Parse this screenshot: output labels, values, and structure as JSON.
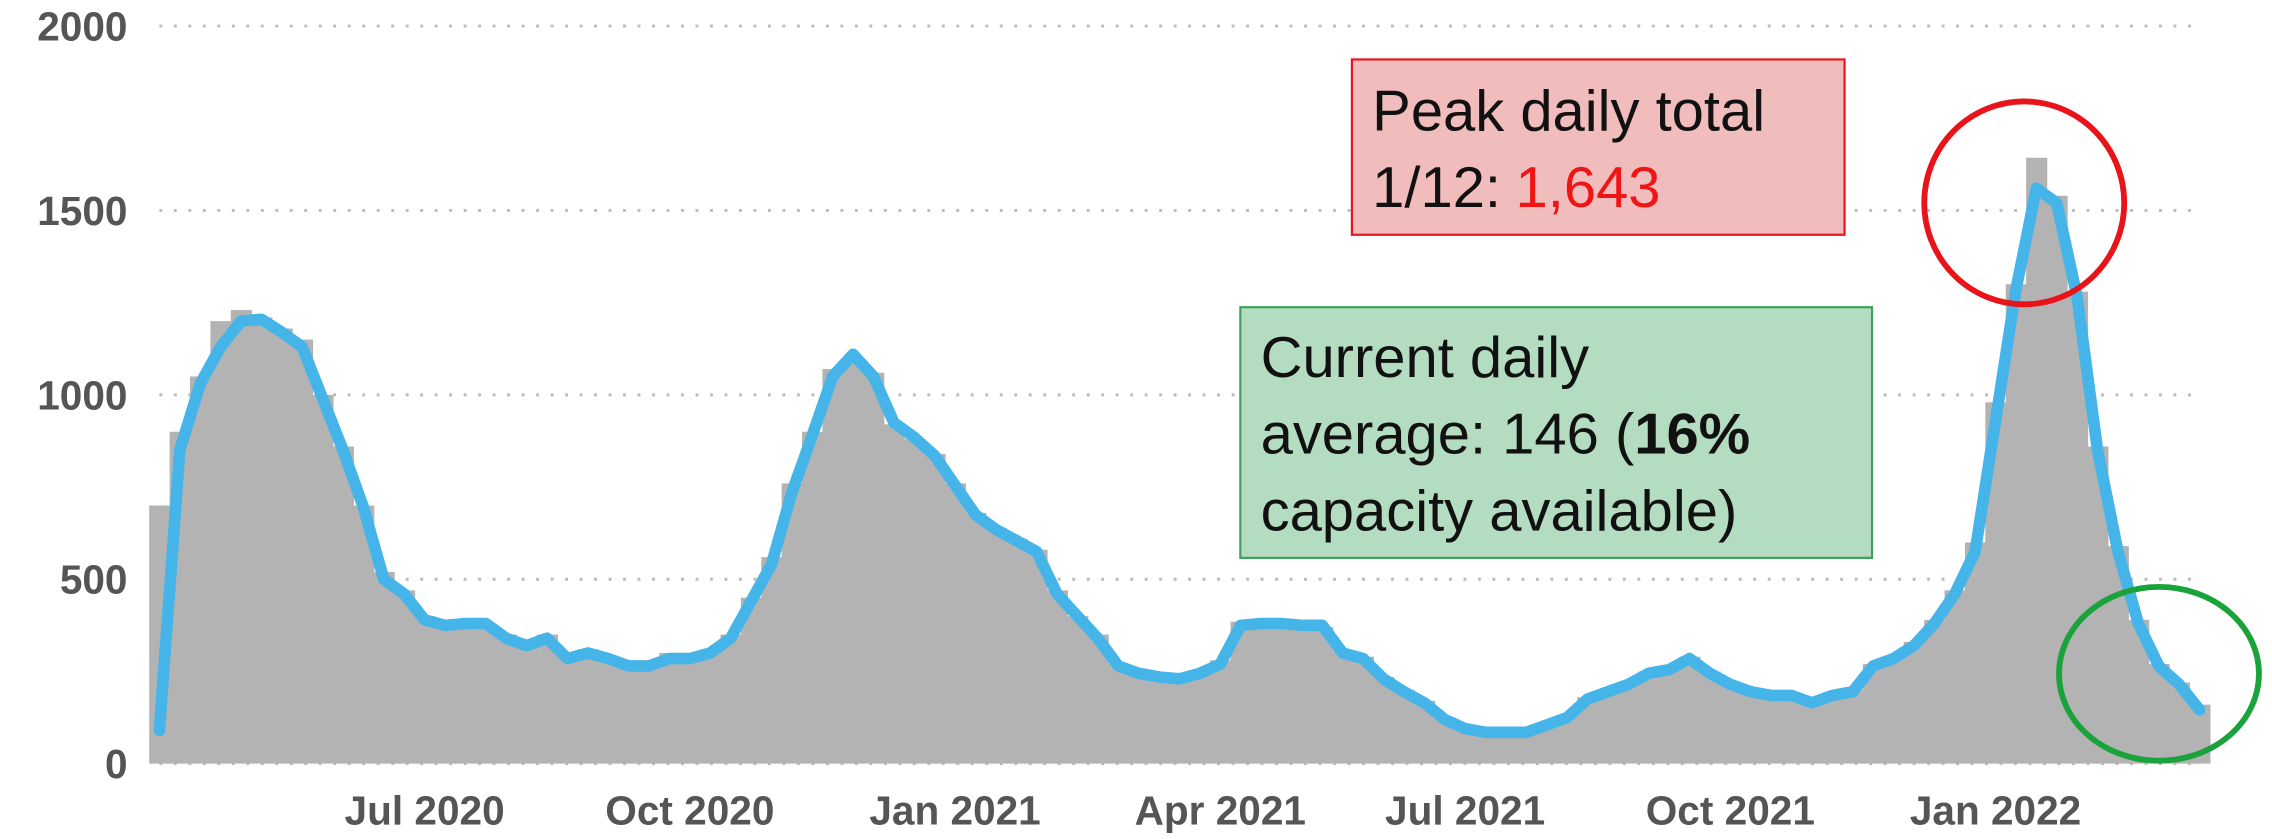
{
  "chart_data": {
    "type": "combo",
    "categories": [
      null,
      null,
      null,
      null,
      null,
      null,
      null,
      null,
      null,
      null,
      null,
      null,
      null,
      "Jul 2020",
      null,
      null,
      null,
      null,
      null,
      null,
      null,
      null,
      null,
      null,
      null,
      null,
      "Oct 2020",
      null,
      null,
      null,
      null,
      null,
      null,
      null,
      null,
      null,
      null,
      null,
      null,
      "Jan 2021",
      null,
      null,
      null,
      null,
      null,
      null,
      null,
      null,
      null,
      null,
      null,
      null,
      "Apr 2021",
      null,
      null,
      null,
      null,
      null,
      null,
      null,
      null,
      null,
      null,
      null,
      "Jul 2021",
      null,
      null,
      null,
      null,
      null,
      null,
      null,
      null,
      null,
      null,
      null,
      null,
      "Oct 2021",
      null,
      null,
      null,
      null,
      null,
      null,
      null,
      null,
      null,
      null,
      null,
      null,
      "Jan 2022",
      null,
      null,
      null,
      null,
      null,
      null,
      null,
      null,
      null,
      null
    ],
    "series": [
      {
        "type": "bar",
        "color": "#b3b3b3",
        "values": [
          700,
          900,
          1050,
          1200,
          1230,
          1210,
          1180,
          1150,
          1000,
          860,
          700,
          520,
          470,
          400,
          390,
          390,
          380,
          350,
          330,
          350,
          300,
          310,
          290,
          270,
          270,
          300,
          290,
          310,
          350,
          450,
          560,
          760,
          900,
          1070,
          1100,
          1060,
          920,
          880,
          840,
          760,
          680,
          640,
          610,
          580,
          470,
          400,
          350,
          270,
          250,
          240,
          235,
          250,
          280,
          385,
          385,
          380,
          380,
          370,
          305,
          290,
          235,
          200,
          170,
          125,
          100,
          90,
          90,
          90,
          110,
          130,
          180,
          200,
          220,
          250,
          260,
          290,
          250,
          220,
          200,
          190,
          190,
          170,
          190,
          200,
          270,
          290,
          330,
          390,
          470,
          600,
          980,
          1300,
          1643,
          1540,
          1280,
          860,
          590,
          390,
          270,
          220,
          160
        ]
      },
      {
        "type": "line",
        "color": "#45b4e8",
        "values": [
          90,
          850,
          1030,
          1130,
          1200,
          1205,
          1170,
          1130,
          990,
          850,
          695,
          500,
          460,
          390,
          375,
          380,
          380,
          340,
          320,
          340,
          285,
          300,
          285,
          265,
          265,
          285,
          285,
          300,
          340,
          440,
          540,
          735,
          890,
          1050,
          1110,
          1050,
          925,
          885,
          835,
          755,
          675,
          635,
          605,
          575,
          460,
          400,
          340,
          265,
          245,
          235,
          230,
          245,
          270,
          375,
          380,
          380,
          375,
          375,
          300,
          285,
          230,
          195,
          165,
          120,
          95,
          85,
          85,
          85,
          105,
          125,
          175,
          195,
          215,
          245,
          255,
          285,
          245,
          215,
          195,
          185,
          185,
          165,
          185,
          195,
          265,
          285,
          320,
          380,
          460,
          575,
          930,
          1285,
          1560,
          1520,
          1265,
          850,
          575,
          380,
          265,
          215,
          146
        ]
      }
    ],
    "ylim": [
      0,
      2000
    ],
    "yticks": [
      0,
      500,
      1000,
      1500,
      2000
    ],
    "grid": true,
    "annotations": {
      "peak": {
        "title": "Peak daily total",
        "date": "1/12:",
        "value": "1,643"
      },
      "current": {
        "line1": "Current daily",
        "line2": "average: 146 (",
        "bold": "16%",
        "line3": "capacity available)"
      }
    }
  }
}
